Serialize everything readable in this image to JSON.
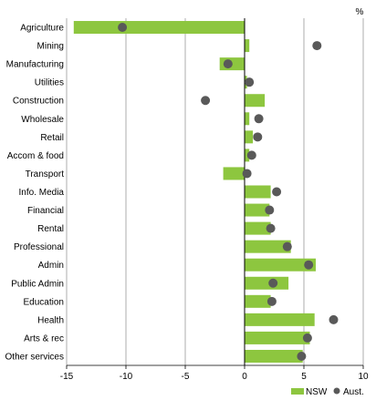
{
  "chart_data": {
    "type": "bar",
    "orientation": "horizontal",
    "unit": "%",
    "categories": [
      "Agriculture",
      "Mining",
      "Manufacturing",
      "Utilities",
      "Construction",
      "Wholesale",
      "Retail",
      "Accom & food",
      "Transport",
      "Info. Media",
      "Financial",
      "Rental",
      "Professional",
      "Admin",
      "Public Admin",
      "Education",
      "Health",
      "Arts & rec",
      "Other services"
    ],
    "series": [
      {
        "name": "NSW",
        "mark": "bar",
        "color": "#8dc63f",
        "values": [
          -14.4,
          0.4,
          -2.1,
          0.2,
          1.7,
          0.4,
          0.7,
          0.4,
          -1.8,
          2.2,
          2.1,
          2.2,
          3.9,
          6.0,
          3.7,
          2.2,
          5.9,
          5.5,
          4.9
        ]
      },
      {
        "name": "Aust.",
        "mark": "dot",
        "color": "#595959",
        "values": [
          -10.3,
          6.1,
          -1.4,
          0.4,
          -3.3,
          1.2,
          1.1,
          0.6,
          0.2,
          2.7,
          2.1,
          2.2,
          3.6,
          5.4,
          2.4,
          2.3,
          7.5,
          5.3,
          4.8
        ]
      }
    ],
    "xlim": [
      -15,
      10
    ],
    "xticks": [
      "-15",
      "-10",
      "-5",
      "0",
      "5",
      "10"
    ],
    "grid": true,
    "legend_position": "bottom-right"
  }
}
